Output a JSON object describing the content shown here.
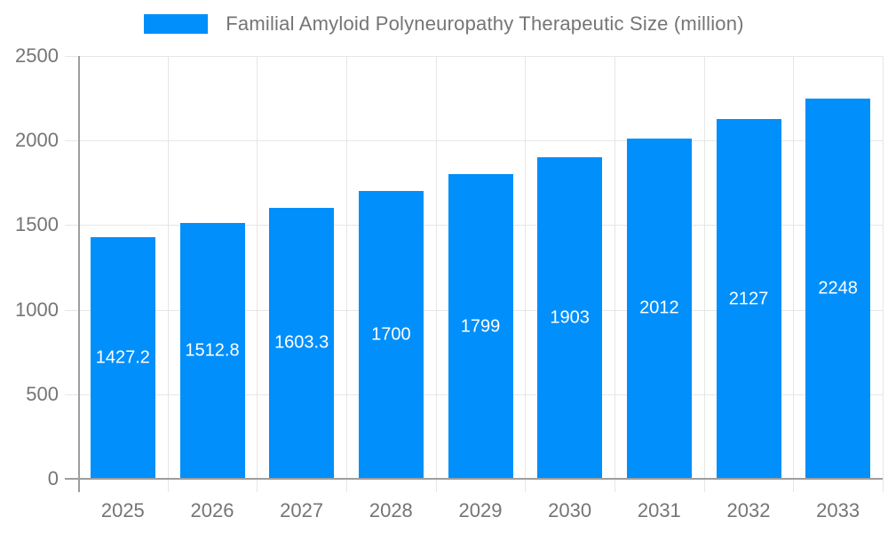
{
  "chart_data": {
    "type": "bar",
    "title": "Familial Amyloid Polyneuropathy Therapeutic Size (million)",
    "categories": [
      "2025",
      "2026",
      "2027",
      "2028",
      "2029",
      "2030",
      "2031",
      "2032",
      "2033"
    ],
    "values": [
      1427.2,
      1512.8,
      1603.3,
      1700,
      1799,
      1903,
      2012,
      2127,
      2248
    ],
    "value_labels": [
      "1427.2",
      "1512.8",
      "1603.3",
      "1700",
      "1799",
      "1903",
      "2012",
      "2127",
      "2248"
    ],
    "xlabel": "",
    "ylabel": "",
    "ylim": [
      0,
      2500
    ],
    "yticks": [
      "0",
      "500",
      "1000",
      "1500",
      "2000",
      "2500"
    ],
    "ytick_values": [
      0,
      500,
      1000,
      1500,
      2000,
      2500
    ],
    "grid": "on",
    "legend_position": "top-center",
    "colors": {
      "bar": "#008FFB",
      "bar_label_text": "#ffffff",
      "axis_text": "#757575",
      "gridline": "#e6e6e6",
      "axis_line": "#9e9e9e",
      "background": "#ffffff"
    }
  }
}
